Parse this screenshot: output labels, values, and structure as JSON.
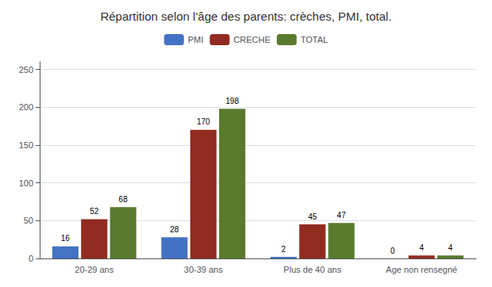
{
  "chart_data": {
    "type": "bar",
    "title": "Répartition selon l'âge des parents: crèches, PMI, total.",
    "categories": [
      "20-29 ans",
      "30-39 ans",
      "Plus de 40 ans",
      "Age non rensegné"
    ],
    "series": [
      {
        "name": "PMI",
        "color": "#4472C4",
        "values": [
          16,
          28,
          2,
          0
        ]
      },
      {
        "name": "CRECHE",
        "color": "#922B21",
        "values": [
          52,
          170,
          45,
          4
        ]
      },
      {
        "name": "TOTAL",
        "color": "#5A7A2E",
        "values": [
          68,
          198,
          47,
          4
        ]
      }
    ],
    "ylim": [
      0,
      260
    ],
    "yticks": [
      0,
      50,
      100,
      150,
      200,
      250
    ],
    "grid": true,
    "legend": "top",
    "data_labels": true
  }
}
